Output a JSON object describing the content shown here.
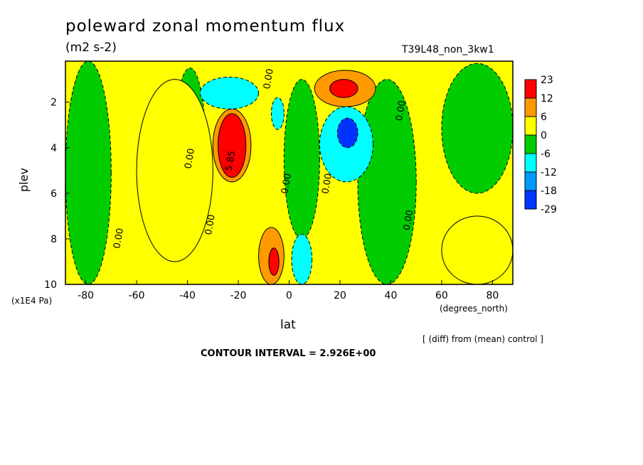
{
  "title": "poleward zonal momentum flux",
  "units": "(m2 s-2)",
  "run_label": "T39L48_non_3kw1",
  "diff_note": "[ (diff) from (mean) control ]",
  "contour_interval_text": "CONTOUR INTERVAL = 2.926E+00",
  "chart_data": {
    "type": "heatmap",
    "title": "poleward zonal momentum flux",
    "xlabel": "lat",
    "x_units": "(degrees_north)",
    "ylabel": "plev",
    "y_units": "(x1E4 Pa)",
    "xlim": [
      -88,
      88
    ],
    "ylim": [
      10,
      0.2
    ],
    "x_ticks": [
      -80,
      -60,
      -40,
      -20,
      0,
      20,
      40,
      60,
      80
    ],
    "y_ticks": [
      2,
      4,
      6,
      8,
      10
    ],
    "contour_interval": 2.926,
    "background_level": "0",
    "colorbar": {
      "labels": [
        "23",
        "12",
        "6",
        "0",
        "-6",
        "-12",
        "-18",
        "-29"
      ],
      "colors": [
        "#ff0000",
        "#ff9a00",
        "#ffff00",
        "#00cc00",
        "#00ffff",
        "#0099ff",
        "#0033ff"
      ]
    },
    "contour_labels": [
      {
        "text": "0.00",
        "lat": -7,
        "plev": 1.0
      },
      {
        "text": "0.00",
        "lat": 45,
        "plev": 2.4
      },
      {
        "text": "0.00",
        "lat": -38,
        "plev": 4.5
      },
      {
        "text": "5.85",
        "lat": -22,
        "plev": 4.6
      },
      {
        "text": "0.00",
        "lat": 0,
        "plev": 5.6
      },
      {
        "text": "0.00",
        "lat": 16,
        "plev": 5.6
      },
      {
        "text": "0.00",
        "lat": -30,
        "plev": 7.4
      },
      {
        "text": "0.00",
        "lat": 48,
        "plev": 7.2
      },
      {
        "text": "0.00",
        "lat": -66,
        "plev": 8.0
      }
    ],
    "regions": [
      {
        "value": -3,
        "lat": [
          -88,
          -70
        ],
        "plev": [
          0.2,
          10
        ]
      },
      {
        "value": -3,
        "lat": [
          -45,
          -33
        ],
        "plev": [
          0.5,
          7
        ]
      },
      {
        "value": -3,
        "lat": [
          -2,
          12
        ],
        "plev": [
          1,
          8
        ]
      },
      {
        "value": -3,
        "lat": [
          27,
          50
        ],
        "plev": [
          1,
          10
        ]
      },
      {
        "value": -3,
        "lat": [
          60,
          88
        ],
        "plev": [
          0.3,
          6
        ]
      },
      {
        "value": 3,
        "lat": [
          -60,
          -30
        ],
        "plev": [
          1,
          9
        ]
      },
      {
        "value": 3,
        "lat": [
          60,
          88
        ],
        "plev": [
          7,
          10
        ]
      },
      {
        "value": 9,
        "lat": [
          -30,
          -15
        ],
        "plev": [
          2.3,
          5.5
        ]
      },
      {
        "value": 23,
        "lat": [
          -28,
          -17
        ],
        "plev": [
          2.5,
          5.3
        ]
      },
      {
        "value": 9,
        "lat": [
          10,
          34
        ],
        "plev": [
          0.6,
          2.2
        ]
      },
      {
        "value": 23,
        "lat": [
          16,
          27
        ],
        "plev": [
          1.0,
          1.8
        ]
      },
      {
        "value": -9,
        "lat": [
          -35,
          -12
        ],
        "plev": [
          0.9,
          2.3
        ]
      },
      {
        "value": -9,
        "lat": [
          12,
          33
        ],
        "plev": [
          2.2,
          5.5
        ]
      },
      {
        "value": -20,
        "lat": [
          19,
          27
        ],
        "plev": [
          2.7,
          4.0
        ]
      },
      {
        "value": -9,
        "lat": [
          -7,
          -2
        ],
        "plev": [
          1.8,
          3.2
        ]
      },
      {
        "value": 9,
        "lat": [
          -12,
          -2
        ],
        "plev": [
          7.5,
          10
        ]
      },
      {
        "value": 18,
        "lat": [
          -8,
          -4
        ],
        "plev": [
          8.4,
          9.6
        ]
      },
      {
        "value": -9,
        "lat": [
          1,
          9
        ],
        "plev": [
          7.8,
          10
        ]
      }
    ]
  }
}
